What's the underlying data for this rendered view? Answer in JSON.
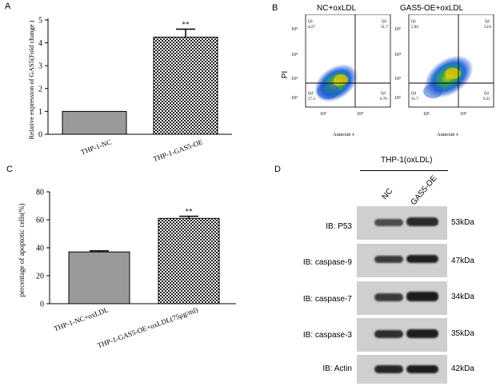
{
  "panels": {
    "a": {
      "letter": "A",
      "chart_data": {
        "type": "bar",
        "categories": [
          "THP-1-NC",
          "THP-1-GAS5-OE"
        ],
        "values": [
          1.0,
          4.25
        ],
        "errors": [
          0.0,
          0.35
        ],
        "significance": [
          "",
          "**"
        ],
        "ylabel": "Relative expression of GAS5(Fold change )",
        "ylim": [
          0,
          5
        ],
        "yticks": [
          "0",
          "1",
          "2",
          "3",
          "4",
          "5"
        ],
        "tick_values": [
          0,
          1,
          2,
          3,
          4,
          5
        ]
      }
    },
    "b": {
      "letter": "B",
      "plots": [
        {
          "title": "NC+oxLDL",
          "quadrants": {
            "q1": "Q1",
            "q1_val": "4.27",
            "q2": "Q2",
            "q2_val": "31.7",
            "q3": "Q3",
            "q3_val": "6.70",
            "q4": "Q4",
            "q4_val": "57.3"
          }
        },
        {
          "title": "GAS5-OE+oxLDL",
          "quadrants": {
            "q1": "Q1",
            "q1_val": "5.94",
            "q2": "Q2",
            "q2_val": "53.0",
            "q3": "Q3",
            "q3_val": "9.31",
            "q4": "Q4",
            "q4_val": "31.7"
          }
        }
      ],
      "ylabel": "PI",
      "xlabel": "Annexin v",
      "y_ticks": [
        "10⁵",
        "10⁴",
        "10³",
        "10²"
      ],
      "x_ticks": [
        "10²",
        "10⁴"
      ]
    },
    "c": {
      "letter": "C",
      "chart_data": {
        "type": "bar",
        "categories": [
          "THP-1-NC+oxLDL",
          "THP-1-GAS5-OE+oxLDL(75μg/ml)"
        ],
        "values": [
          37,
          61
        ],
        "errors": [
          0.8,
          1.5
        ],
        "significance": [
          "",
          "**"
        ],
        "ylabel": "percentage of apoptotic cells(%)",
        "ylim": [
          0,
          80
        ],
        "yticks": [
          "0",
          "20",
          "40",
          "60",
          "80"
        ],
        "tick_values": [
          0,
          20,
          40,
          60,
          80
        ]
      }
    },
    "d": {
      "letter": "D",
      "header": "THP-1(oxLDL)",
      "lanes": [
        "NC",
        "GAS5-OE"
      ],
      "rows": [
        {
          "label": "IB: P53",
          "kda": "53kDa"
        },
        {
          "label": "IB: caspase-9",
          "kda": "47kDa"
        },
        {
          "label": "IB: caspase-7",
          "kda": "34kDa"
        },
        {
          "label": "IB: caspase-3",
          "kda": "35kDa"
        },
        {
          "label": "IB:  Actin",
          "kda": "42kDa"
        }
      ]
    }
  }
}
